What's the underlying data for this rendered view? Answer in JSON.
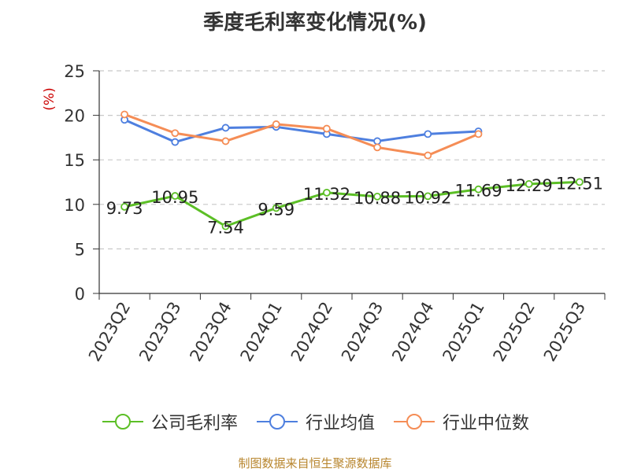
{
  "title": "季度毛利率变化情况(%)",
  "source": "制图数据来自恒生聚源数据库",
  "chart_data": {
    "type": "line",
    "title": "季度毛利率变化情况(%)",
    "ylabel": "(%)",
    "ylim": [
      0,
      25
    ],
    "yticks": [
      0,
      5,
      10,
      15,
      20,
      25
    ],
    "grid": true,
    "legend_position": "bottom",
    "categories": [
      "2023Q2",
      "2023Q3",
      "2023Q4",
      "2024Q1",
      "2024Q2",
      "2024Q3",
      "2024Q4",
      "2025Q1",
      "2025Q2",
      "2025Q3"
    ],
    "series": [
      {
        "name": "公司毛利率",
        "color": "#5cbf26",
        "show_labels": true,
        "values": [
          9.73,
          10.95,
          7.54,
          9.59,
          11.32,
          10.88,
          10.92,
          11.69,
          12.29,
          12.51
        ]
      },
      {
        "name": "行业均值",
        "color": "#4e7fdf",
        "show_labels": false,
        "values": [
          19.5,
          17.0,
          18.6,
          18.7,
          17.9,
          17.1,
          17.9,
          18.2,
          null,
          null
        ]
      },
      {
        "name": "行业中位数",
        "color": "#f58d56",
        "show_labels": false,
        "values": [
          20.1,
          18.0,
          17.1,
          19.0,
          18.5,
          16.4,
          15.5,
          17.9,
          null,
          null
        ]
      }
    ]
  }
}
